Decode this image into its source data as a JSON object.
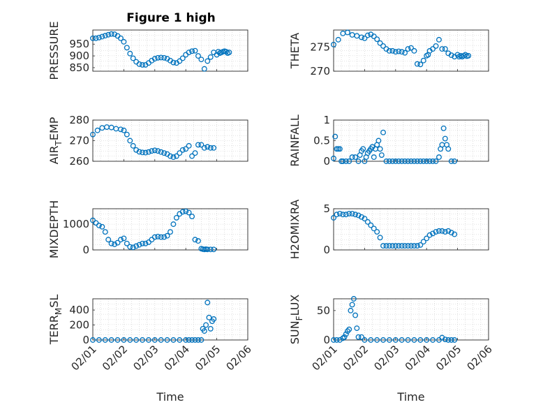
{
  "figure": {
    "title": "Figure 1 high"
  },
  "chart_data": [
    {
      "type": "scatter",
      "title": "Figure 1 high",
      "ylabel": "PRESSURE",
      "xlabel": "",
      "ylim": [
        835,
        1010
      ],
      "yticks": [
        850,
        900,
        950
      ],
      "xlim": [
        0,
        5
      ],
      "x": [
        0,
        0.1,
        0.2,
        0.3,
        0.4,
        0.5,
        0.6,
        0.7,
        0.8,
        0.9,
        1.0,
        1.1,
        1.2,
        1.3,
        1.4,
        1.5,
        1.6,
        1.7,
        1.8,
        1.9,
        2.0,
        2.1,
        2.2,
        2.3,
        2.4,
        2.5,
        2.6,
        2.7,
        2.8,
        2.9,
        3.0,
        3.1,
        3.2,
        3.3,
        3.4,
        3.5,
        3.6,
        3.7,
        3.8,
        3.9,
        4.0,
        4.05,
        4.1,
        4.15,
        4.2,
        4.25,
        4.3,
        4.35,
        4.4
      ],
      "y": [
        975,
        975,
        978,
        982,
        986,
        990,
        993,
        992,
        985,
        975,
        960,
        935,
        910,
        890,
        875,
        865,
        862,
        862,
        870,
        880,
        888,
        892,
        893,
        892,
        888,
        880,
        872,
        870,
        878,
        890,
        905,
        915,
        920,
        922,
        900,
        885,
        845,
        878,
        895,
        915,
        905,
        918,
        912,
        915,
        918,
        920,
        918,
        912,
        915
      ]
    },
    {
      "type": "scatter",
      "title": "",
      "ylabel": "THETA",
      "xlabel": "",
      "ylim": [
        270,
        278.5
      ],
      "yticks": [
        270,
        275
      ],
      "xlim": [
        0,
        5
      ],
      "x": [
        0,
        0.15,
        0.3,
        0.45,
        0.6,
        0.75,
        0.9,
        1.0,
        1.1,
        1.2,
        1.3,
        1.4,
        1.5,
        1.6,
        1.7,
        1.8,
        1.9,
        2.0,
        2.1,
        2.2,
        2.3,
        2.4,
        2.5,
        2.6,
        2.7,
        2.8,
        2.9,
        3.0,
        3.05,
        3.1,
        3.2,
        3.3,
        3.4,
        3.5,
        3.6,
        3.7,
        3.8,
        3.9,
        4.0,
        4.05,
        4.1,
        4.15,
        4.2,
        4.25,
        4.3,
        4.35
      ],
      "y": [
        275.5,
        276.5,
        277.8,
        278,
        277.5,
        277.3,
        277,
        276.8,
        277.4,
        277.6,
        277.2,
        276.6,
        275.8,
        275.2,
        274.6,
        274.2,
        274.2,
        274.0,
        274.1,
        274.0,
        273.8,
        274.6,
        274.8,
        274.2,
        271.5,
        271.4,
        272.2,
        273.2,
        273.4,
        274.2,
        274.6,
        275.2,
        276.5,
        274.6,
        274.6,
        273.7,
        273.3,
        273.0,
        273.4,
        273.0,
        273.2,
        273.0,
        273.2,
        273.4,
        273.1,
        273.2
      ]
    },
    {
      "type": "scatter",
      "title": "",
      "ylabel": "AIR_TEMP",
      "xlabel": "",
      "ylim": [
        260,
        280
      ],
      "yticks": [
        260,
        270,
        280
      ],
      "xlim": [
        0,
        5
      ],
      "x": [
        0,
        0.15,
        0.3,
        0.45,
        0.6,
        0.75,
        0.9,
        1.0,
        1.1,
        1.2,
        1.3,
        1.4,
        1.5,
        1.6,
        1.7,
        1.8,
        1.9,
        2.0,
        2.1,
        2.2,
        2.3,
        2.4,
        2.5,
        2.6,
        2.7,
        2.8,
        2.9,
        3.0,
        3.1,
        3.2,
        3.3,
        3.4,
        3.5,
        3.6,
        3.7,
        3.8,
        3.9
      ],
      "y": [
        273,
        275,
        276.2,
        276.6,
        276.4,
        275.8,
        275.5,
        275,
        273,
        270,
        267.5,
        265.5,
        264.6,
        264.3,
        264.2,
        264.5,
        265,
        265.3,
        265.0,
        264.5,
        264.0,
        263.5,
        262.5,
        262,
        262.5,
        264,
        265.5,
        266,
        267.5,
        262.5,
        264,
        268,
        268,
        266.5,
        267,
        266.5,
        266.5
      ]
    },
    {
      "type": "scatter",
      "title": "",
      "ylabel": "RAINFALL",
      "xlabel": "",
      "ylim": [
        0,
        1
      ],
      "yticks": [
        0,
        0.5,
        1
      ],
      "xlim": [
        0,
        5
      ],
      "x": [
        0,
        0.05,
        0.1,
        0.15,
        0.2,
        0.25,
        0.3,
        0.4,
        0.5,
        0.6,
        0.7,
        0.8,
        0.85,
        0.9,
        0.95,
        1.0,
        1.05,
        1.1,
        1.15,
        1.2,
        1.25,
        1.3,
        1.35,
        1.4,
        1.45,
        1.5,
        1.55,
        1.6,
        1.7,
        1.8,
        1.9,
        2.0,
        2.1,
        2.2,
        2.3,
        2.4,
        2.5,
        2.6,
        2.7,
        2.8,
        2.9,
        3.0,
        3.1,
        3.2,
        3.3,
        3.4,
        3.45,
        3.5,
        3.55,
        3.6,
        3.65,
        3.7,
        3.8,
        3.9
      ],
      "y": [
        0.07,
        0.6,
        0.3,
        0.3,
        0.3,
        0.0,
        0.0,
        0.0,
        0.0,
        0.1,
        0.1,
        0.0,
        0.15,
        0.25,
        0.3,
        0.0,
        0.1,
        0.2,
        0.25,
        0.3,
        0.35,
        0.1,
        0.3,
        0.4,
        0.5,
        0.3,
        0.15,
        0.7,
        0.0,
        0.0,
        0.0,
        0.0,
        0.0,
        0.0,
        0.0,
        0.0,
        0.0,
        0.0,
        0.0,
        0.0,
        0.0,
        0.0,
        0.0,
        0.0,
        0.0,
        0.1,
        0.3,
        0.4,
        0.8,
        0.55,
        0.4,
        0.3,
        0.0,
        0.0
      ]
    },
    {
      "type": "scatter",
      "title": "",
      "ylabel": "MIXDEPTH",
      "xlabel": "",
      "ylim": [
        0,
        1600
      ],
      "yticks": [
        0,
        1000
      ],
      "xlim": [
        0,
        5
      ],
      "x": [
        0,
        0.1,
        0.2,
        0.3,
        0.4,
        0.5,
        0.6,
        0.7,
        0.8,
        0.9,
        1.0,
        1.1,
        1.2,
        1.3,
        1.4,
        1.5,
        1.6,
        1.7,
        1.8,
        1.9,
        2.0,
        2.1,
        2.2,
        2.3,
        2.4,
        2.5,
        2.6,
        2.7,
        2.8,
        2.9,
        3.0,
        3.1,
        3.2,
        3.3,
        3.4,
        3.5,
        3.55,
        3.6,
        3.65,
        3.7,
        3.8,
        3.9
      ],
      "y": [
        1150,
        1050,
        950,
        900,
        700,
        400,
        250,
        220,
        280,
        400,
        450,
        250,
        120,
        100,
        150,
        200,
        250,
        250,
        300,
        400,
        500,
        520,
        500,
        500,
        550,
        700,
        1000,
        1250,
        1400,
        1480,
        1500,
        1450,
        1300,
        400,
        350,
        50,
        30,
        20,
        30,
        20,
        20,
        20
      ]
    },
    {
      "type": "scatter",
      "title": "",
      "ylabel": "H2OMIXRA",
      "xlabel": "",
      "ylim": [
        0,
        5
      ],
      "yticks": [
        0,
        5
      ],
      "xlim": [
        0,
        5
      ],
      "x": [
        0,
        0.1,
        0.2,
        0.3,
        0.4,
        0.5,
        0.6,
        0.7,
        0.8,
        0.9,
        1.0,
        1.1,
        1.2,
        1.3,
        1.4,
        1.5,
        1.6,
        1.7,
        1.8,
        1.9,
        2.0,
        2.1,
        2.2,
        2.3,
        2.4,
        2.5,
        2.6,
        2.7,
        2.8,
        2.9,
        3.0,
        3.1,
        3.2,
        3.3,
        3.4,
        3.5,
        3.6,
        3.7,
        3.8,
        3.9
      ],
      "y": [
        3.9,
        4.3,
        4.4,
        4.3,
        4.3,
        4.4,
        4.4,
        4.3,
        4.2,
        4.0,
        3.8,
        3.4,
        3.0,
        2.6,
        2.2,
        1.5,
        0.5,
        0.5,
        0.5,
        0.5,
        0.5,
        0.5,
        0.5,
        0.5,
        0.5,
        0.5,
        0.5,
        0.5,
        0.6,
        1.0,
        1.4,
        1.8,
        2.0,
        2.2,
        2.3,
        2.3,
        2.2,
        2.3,
        2.1,
        1.9
      ]
    },
    {
      "type": "scatter",
      "title": "",
      "ylabel": "TERR_MSL",
      "xlabel": "Time",
      "ylim": [
        0,
        550
      ],
      "yticks": [
        0,
        200,
        400
      ],
      "xlim": [
        0,
        5
      ],
      "xticks": [
        "02/01",
        "02/02",
        "02/03",
        "02/04",
        "02/05",
        "02/06"
      ],
      "x": [
        0,
        0.2,
        0.4,
        0.6,
        0.8,
        1.0,
        1.2,
        1.4,
        1.6,
        1.8,
        2.0,
        2.2,
        2.4,
        2.6,
        2.8,
        3.0,
        3.1,
        3.2,
        3.3,
        3.4,
        3.5,
        3.55,
        3.6,
        3.65,
        3.7,
        3.75,
        3.8,
        3.85,
        3.9
      ],
      "y": [
        0,
        0,
        0,
        0,
        0,
        0,
        0,
        0,
        0,
        0,
        0,
        0,
        0,
        0,
        0,
        0,
        0,
        0,
        0,
        0,
        0,
        150,
        120,
        200,
        500,
        300,
        150,
        250,
        280
      ]
    },
    {
      "type": "scatter",
      "title": "",
      "ylabel": "SUN_FLUX",
      "xlabel": "Time",
      "ylim": [
        0,
        70
      ],
      "yticks": [
        0,
        50
      ],
      "xlim": [
        0,
        5
      ],
      "xticks": [
        "02/01",
        "02/02",
        "02/03",
        "02/04",
        "02/05",
        "02/06"
      ],
      "x": [
        0,
        0.1,
        0.2,
        0.3,
        0.35,
        0.4,
        0.45,
        0.5,
        0.55,
        0.6,
        0.65,
        0.7,
        0.75,
        0.8,
        0.9,
        1.0,
        1.2,
        1.4,
        1.6,
        1.8,
        2.0,
        2.2,
        2.4,
        2.6,
        2.8,
        3.0,
        3.2,
        3.4,
        3.5,
        3.6,
        3.7,
        3.8,
        3.9
      ],
      "y": [
        0,
        0,
        0,
        3,
        5,
        10,
        15,
        18,
        50,
        60,
        70,
        42,
        20,
        5,
        5,
        0,
        0,
        0,
        0,
        0,
        0,
        0,
        0,
        0,
        0,
        0,
        0,
        0,
        4,
        1,
        0,
        0,
        0
      ]
    }
  ]
}
